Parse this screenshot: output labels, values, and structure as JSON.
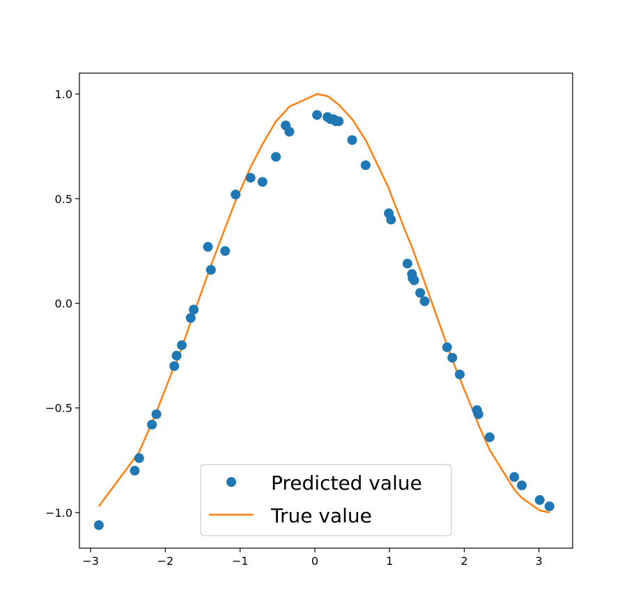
{
  "chart_data": {
    "type": "scatter",
    "title": "",
    "xlabel": "",
    "ylabel": "",
    "xlim": [
      -3.15,
      3.45
    ],
    "ylim": [
      -1.17,
      1.1
    ],
    "xticks": [
      {
        "value": -3,
        "label": "−3"
      },
      {
        "value": -2,
        "label": "−2"
      },
      {
        "value": -1,
        "label": "−1"
      },
      {
        "value": 0,
        "label": "0"
      },
      {
        "value": 1,
        "label": "1"
      },
      {
        "value": 2,
        "label": "2"
      },
      {
        "value": 3,
        "label": "3"
      }
    ],
    "yticks": [
      {
        "value": -1.0,
        "label": "−1.0"
      },
      {
        "value": -0.5,
        "label": "−0.5"
      },
      {
        "value": 0.0,
        "label": "0.0"
      },
      {
        "value": 0.5,
        "label": "0.5"
      },
      {
        "value": 1.0,
        "label": "1.0"
      }
    ],
    "grid": false,
    "legend_position": "bottom-center",
    "series": [
      {
        "name": "Predicted value",
        "kind": "scatter",
        "color": "#1f77b4",
        "x": [
          -2.89,
          -2.41,
          -2.35,
          -2.18,
          -2.12,
          -1.88,
          -1.85,
          -1.78,
          -1.66,
          -1.62,
          -1.43,
          -1.39,
          -1.2,
          -1.06,
          -0.86,
          -0.7,
          -0.52,
          -0.39,
          -0.34,
          0.03,
          0.17,
          0.21,
          0.25,
          0.28,
          0.32,
          0.5,
          0.68,
          0.99,
          1.02,
          1.24,
          1.3,
          1.31,
          1.33,
          1.41,
          1.47,
          1.77,
          1.84,
          1.94,
          2.17,
          2.19,
          2.34,
          2.67,
          2.77,
          3.01,
          3.14
        ],
        "y": [
          -1.06,
          -0.8,
          -0.74,
          -0.58,
          -0.53,
          -0.3,
          -0.25,
          -0.2,
          -0.07,
          -0.03,
          0.27,
          0.16,
          0.25,
          0.52,
          0.6,
          0.58,
          0.7,
          0.85,
          0.82,
          0.9,
          0.89,
          0.88,
          0.88,
          0.87,
          0.87,
          0.78,
          0.66,
          0.43,
          0.4,
          0.19,
          0.14,
          0.12,
          0.11,
          0.05,
          0.01,
          -0.21,
          -0.26,
          -0.34,
          -0.51,
          -0.53,
          -0.64,
          -0.83,
          -0.87,
          -0.94,
          -0.97
        ]
      },
      {
        "name": "True value",
        "kind": "line",
        "color": "#ff7f0e",
        "x": [
          -2.89,
          -2.41,
          -2.35,
          -2.18,
          -2.12,
          -1.88,
          -1.85,
          -1.78,
          -1.66,
          -1.62,
          -1.43,
          -1.39,
          -1.2,
          -1.06,
          -0.86,
          -0.7,
          -0.52,
          -0.39,
          -0.34,
          0.03,
          0.17,
          0.21,
          0.25,
          0.28,
          0.32,
          0.5,
          0.68,
          0.99,
          1.02,
          1.24,
          1.3,
          1.31,
          1.33,
          1.41,
          1.47,
          1.77,
          1.84,
          1.94,
          2.17,
          2.19,
          2.34,
          2.67,
          2.77,
          3.01,
          3.14
        ],
        "y": [
          -0.97,
          -0.74,
          -0.71,
          -0.57,
          -0.52,
          -0.3,
          -0.28,
          -0.21,
          -0.09,
          -0.05,
          0.14,
          0.18,
          0.36,
          0.49,
          0.65,
          0.76,
          0.87,
          0.92,
          0.94,
          1.0,
          0.99,
          0.98,
          0.97,
          0.96,
          0.95,
          0.88,
          0.78,
          0.55,
          0.52,
          0.32,
          0.27,
          0.26,
          0.24,
          0.16,
          0.1,
          -0.2,
          -0.27,
          -0.36,
          -0.56,
          -0.58,
          -0.7,
          -0.89,
          -0.93,
          -0.99,
          -1.0
        ]
      }
    ]
  }
}
